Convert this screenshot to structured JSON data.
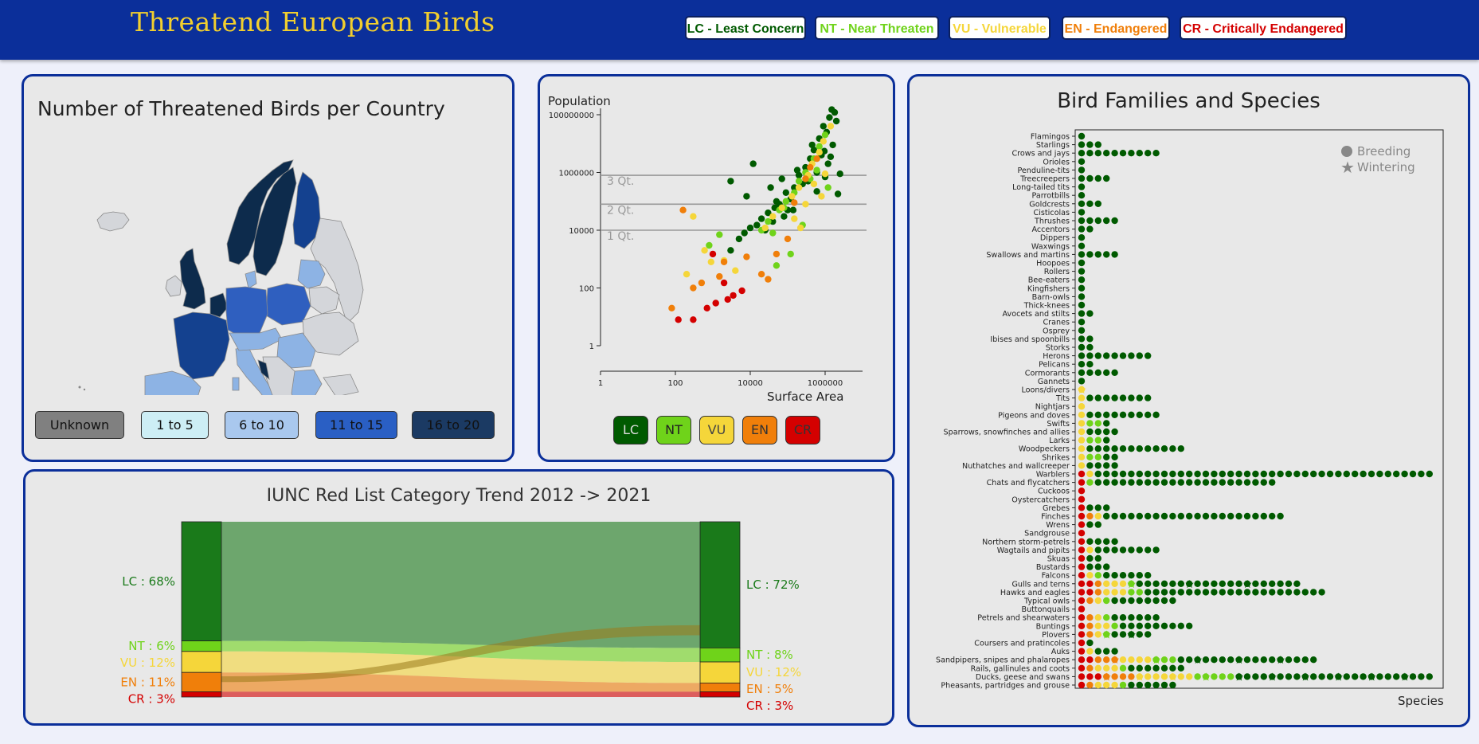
{
  "header": {
    "title": "Threatend European Birds",
    "legend": [
      {
        "label": "LC - Least Concern",
        "color": "#005a00"
      },
      {
        "label": "NT - Near Threaten",
        "color": "#6fd31a"
      },
      {
        "label": "VU - Vulnerable",
        "color": "#f5d63a"
      },
      {
        "label": "EN - Endangered",
        "color": "#f07f0a"
      },
      {
        "label": "CR - Critically Endangered",
        "color": "#d40000"
      }
    ]
  },
  "map": {
    "title": "Number of Threatened Birds per Country",
    "legend": [
      {
        "label": "Unknown",
        "color": "#808080"
      },
      {
        "label": "1 to 5",
        "color": "#cdeef5"
      },
      {
        "label": "6 to 10",
        "color": "#a9c8ee"
      },
      {
        "label": "11 to 15",
        "color": "#2a5fc4"
      },
      {
        "label": "16 to 20",
        "color": "#1b3a63"
      }
    ],
    "colors": {
      "unknown": "#d4d6da",
      "c1": "#8db3e4",
      "c2": "#2f5fbf",
      "c3": "#14418f",
      "c4": "#0d2b4c"
    }
  },
  "scatter": {
    "ylabel": "Population",
    "xlabel": "Surface Area",
    "quartiles": [
      "3 Qt.",
      "2 Qt.",
      "1 Qt."
    ],
    "buttons": [
      "LC",
      "NT",
      "VU",
      "EN",
      "CR"
    ],
    "button_colors": [
      "#005a00",
      "#6fd31a",
      "#f5d63a",
      "#f07f0a",
      "#d40000"
    ]
  },
  "families": {
    "title": "Bird Families and Species",
    "xlabel": "Species",
    "legend": [
      "Breeding",
      "Wintering"
    ]
  },
  "sankey": {
    "title": "IUNC Red List Category Trend 2012 -> 2021",
    "left": [
      {
        "label": "LC : 68%",
        "color": "#1a7a1a"
      },
      {
        "label": "NT : 6%",
        "color": "#6fd31a"
      },
      {
        "label": "VU : 12%",
        "color": "#f5d63a"
      },
      {
        "label": "EN : 11%",
        "color": "#f07f0a"
      },
      {
        "label": "CR : 3%",
        "color": "#d40000"
      }
    ],
    "right": [
      {
        "label": "LC : 72%",
        "color": "#1a7a1a"
      },
      {
        "label": "NT : 8%",
        "color": "#6fd31a"
      },
      {
        "label": "VU : 12%",
        "color": "#f5d63a"
      },
      {
        "label": "EN : 5%",
        "color": "#f07f0a"
      },
      {
        "label": "CR : 3%",
        "color": "#d40000"
      }
    ]
  },
  "chart_data": [
    {
      "type": "scatter",
      "xlabel": "Surface Area",
      "ylabel": "Population",
      "xscale": "log",
      "yscale": "log",
      "xlim": [
        1,
        10000000
      ],
      "ylim": [
        1,
        100000000
      ],
      "x_ticks": [
        "1",
        "100",
        "10000",
        "1000000"
      ],
      "y_ticks": [
        "1",
        "100",
        "10000",
        "1000000",
        "100000000"
      ],
      "quartile_lines": [
        {
          "label": "3 Qt.",
          "y": 800000
        },
        {
          "label": "2 Qt.",
          "y": 80000
        },
        {
          "label": "1 Qt.",
          "y": 10000
        }
      ],
      "series": [
        {
          "name": "LC",
          "color": "#005a00",
          "points": [
            [
              1500000,
              150000000
            ],
            [
              1800000,
              120000000
            ],
            [
              1300000,
              80000000
            ],
            [
              2000000,
              60000000
            ],
            [
              900000,
              40000000
            ],
            [
              1100000,
              25000000
            ],
            [
              700000,
              15000000
            ],
            [
              1600000,
              9000000
            ],
            [
              500000,
              6000000
            ],
            [
              800000,
              4000000
            ],
            [
              400000,
              3000000
            ],
            [
              1200000,
              2000000
            ],
            [
              300000,
              1500000
            ],
            [
              600000,
              1000000
            ],
            [
              200000,
              800000
            ],
            [
              350000,
              500000
            ],
            [
              150000,
              300000
            ],
            [
              90000,
              200000
            ],
            [
              120000,
              120000
            ],
            [
              60000,
              80000
            ],
            [
              45000,
              60000
            ],
            [
              30000,
              40000
            ],
            [
              20000,
              25000
            ],
            [
              80000,
              30000
            ],
            [
              15000,
              15000
            ],
            [
              10000,
              12000
            ],
            [
              25000,
              10000
            ],
            [
              7000,
              8000
            ],
            [
              5000,
              5000
            ],
            [
              40000,
              20000
            ],
            [
              100000,
              50000
            ],
            [
              250000,
              400000
            ],
            [
              2500000,
              900000
            ],
            [
              1000000,
              700000
            ],
            [
              180000,
              1200000
            ],
            [
              70000,
              600000
            ],
            [
              35000,
              300000
            ],
            [
              12000,
              2000000
            ],
            [
              3000,
              500000
            ],
            [
              8000,
              150000
            ],
            [
              50000,
              100000
            ],
            [
              140000,
              50000
            ],
            [
              2200000,
              180000
            ],
            [
              600000,
              220000
            ],
            [
              450000,
              9000000
            ],
            [
              950000,
              5500000
            ],
            [
              1400000,
              3500000
            ],
            [
              3000,
              2000
            ]
          ]
        },
        {
          "name": "NT",
          "color": "#6fd31a",
          "points": [
            [
              1000000,
              20000000
            ],
            [
              700000,
              8000000
            ],
            [
              500000,
              3000000
            ],
            [
              300000,
              1000000
            ],
            [
              200000,
              500000
            ],
            [
              150000,
              200000
            ],
            [
              90000,
              100000
            ],
            [
              60000,
              50000
            ],
            [
              30000,
              20000
            ],
            [
              20000,
              10000
            ],
            [
              1500,
              7000
            ],
            [
              800,
              3000
            ],
            [
              120000,
              1500
            ],
            [
              50000,
              600
            ],
            [
              400000,
              600000
            ],
            [
              250000,
              15000
            ],
            [
              80000,
              60000
            ],
            [
              40000,
              8000
            ],
            [
              600000,
              1200000
            ],
            [
              1200000,
              300000
            ]
          ]
        },
        {
          "name": "VU",
          "color": "#f5d63a",
          "points": [
            [
              1400000,
              40000000
            ],
            [
              900000,
              12000000
            ],
            [
              700000,
              5000000
            ],
            [
              450000,
              2000000
            ],
            [
              350000,
              800000
            ],
            [
              200000,
              300000
            ],
            [
              130000,
              150000
            ],
            [
              70000,
              60000
            ],
            [
              40000,
              30000
            ],
            [
              25000,
              12000
            ],
            [
              300,
              30000
            ],
            [
              600,
              2000
            ],
            [
              900,
              800
            ],
            [
              200,
              300
            ],
            [
              4000,
              400
            ],
            [
              2000,
              900
            ],
            [
              150000,
              25000
            ],
            [
              300000,
              80000
            ],
            [
              800000,
              150000
            ],
            [
              500000,
              400000
            ],
            [
              1000000,
              900000
            ],
            [
              220000,
              12000
            ]
          ]
        },
        {
          "name": "EN",
          "color": "#f07f0a",
          "points": [
            [
              160,
              50000
            ],
            [
              80,
              20
            ],
            [
              300,
              100
            ],
            [
              500,
              150
            ],
            [
              1500,
              250
            ],
            [
              2000,
              800
            ],
            [
              600000,
              3000000
            ],
            [
              300000,
              600000
            ],
            [
              150000,
              90000
            ],
            [
              100000,
              5000
            ],
            [
              20000,
              300
            ],
            [
              30000,
              200
            ],
            [
              8000,
              1200
            ],
            [
              50000,
              1500
            ],
            [
              400000,
              1500000
            ]
          ]
        },
        {
          "name": "CR",
          "color": "#d40000",
          "points": [
            [
              120,
              8
            ],
            [
              300,
              8
            ],
            [
              700,
              20
            ],
            [
              1200,
              30
            ],
            [
              2500,
              40
            ],
            [
              3500,
              55
            ],
            [
              1000,
              1500
            ],
            [
              6000,
              80
            ],
            [
              2000,
              150
            ]
          ]
        }
      ]
    },
    {
      "type": "dot",
      "title": "Bird Families and Species",
      "xlabel": "Species",
      "legend": [
        "Breeding",
        "Wintering"
      ],
      "categories": [
        "Flamingos",
        "Starlings",
        "Crows and jays",
        "Orioles",
        "Penduline-tits",
        "Treecreepers",
        "Long-tailed tits",
        "Parrotbills",
        "Goldcrests",
        "Cisticolas",
        "Thrushes",
        "Accentors",
        "Dippers",
        "Waxwings",
        "Swallows and martins",
        "Hoopoes",
        "Rollers",
        "Bee-eaters",
        "Kingfishers",
        "Barn-owls",
        "Thick-knees",
        "Avocets and stilts",
        "Cranes",
        "Osprey",
        "Ibises and spoonbills",
        "Storks",
        "Herons",
        "Pelicans",
        "Cormorants",
        "Gannets",
        "Loons/divers",
        "Tits",
        "Nightjars",
        "Pigeons and doves",
        "Swifts",
        "Sparrows, snowfinches and allies",
        "Larks",
        "Woodpeckers",
        "Shrikes",
        "Nuthatches and wallcreeper",
        "Warblers",
        "Chats and flycatchers",
        "Cuckoos",
        "Oystercatchers",
        "Grebes",
        "Finches",
        "Wrens",
        "Sandgrouse",
        "Northern storm-petrels",
        "Wagtails and pipits",
        "Skuas",
        "Bustards",
        "Falcons",
        "Gulls and terns",
        "Hawks and eagles",
        "Typical owls",
        "Buttonquails",
        "Petrels and shearwaters",
        "Buntings",
        "Plovers",
        "Coursers and pratincoles",
        "Auks",
        "Sandpipers, snipes and phalaropes",
        "Rails, gallinules and coots",
        "Ducks, geese and swans",
        "Pheasants, partridges and grouse"
      ],
      "series": [
        {
          "name": "Breeding",
          "color": "#005a00",
          "counts": [
            1,
            3,
            10,
            1,
            1,
            4,
            1,
            1,
            3,
            1,
            5,
            2,
            1,
            1,
            5,
            1,
            1,
            1,
            1,
            1,
            1,
            2,
            1,
            1,
            2,
            2,
            9,
            2,
            5,
            1,
            1,
            9,
            1,
            10,
            4,
            5,
            4,
            13,
            5,
            5,
            43,
            24,
            1,
            1,
            4,
            25,
            3,
            1,
            5,
            10,
            3,
            4,
            9,
            27,
            30,
            12,
            1,
            10,
            14,
            9,
            2,
            5,
            29,
            13,
            43,
            12
          ]
        },
        {
          "name": "Wintering",
          "color": "#005a00",
          "counts": [
            0,
            0,
            0,
            0,
            0,
            0,
            0,
            0,
            0,
            0,
            0,
            0,
            0,
            0,
            0,
            0,
            0,
            0,
            0,
            0,
            0,
            0,
            0,
            0,
            0,
            0,
            0,
            0,
            0,
            0,
            1,
            0,
            0,
            0,
            0,
            0,
            0,
            0,
            0,
            0,
            0,
            0,
            0,
            0,
            0,
            0,
            0,
            0,
            0,
            0,
            0,
            0,
            0,
            3,
            0,
            0,
            0,
            0,
            0,
            2,
            0,
            0,
            5,
            0,
            10,
            0
          ]
        }
      ]
    },
    {
      "type": "sankey",
      "title": "IUNC Red List Category Trend 2012 -> 2021",
      "categories": [
        "LC",
        "NT",
        "VU",
        "EN",
        "CR"
      ],
      "series": [
        {
          "name": "2012",
          "values": [
            68,
            6,
            12,
            11,
            3
          ]
        },
        {
          "name": "2021",
          "values": [
            72,
            8,
            12,
            5,
            3
          ]
        }
      ]
    },
    {
      "type": "map",
      "title": "Number of Threatened Birds per Country",
      "legend": [
        "Unknown",
        "1 to 5",
        "6 to 10",
        "11 to 15",
        "16 to 20"
      ]
    }
  ]
}
